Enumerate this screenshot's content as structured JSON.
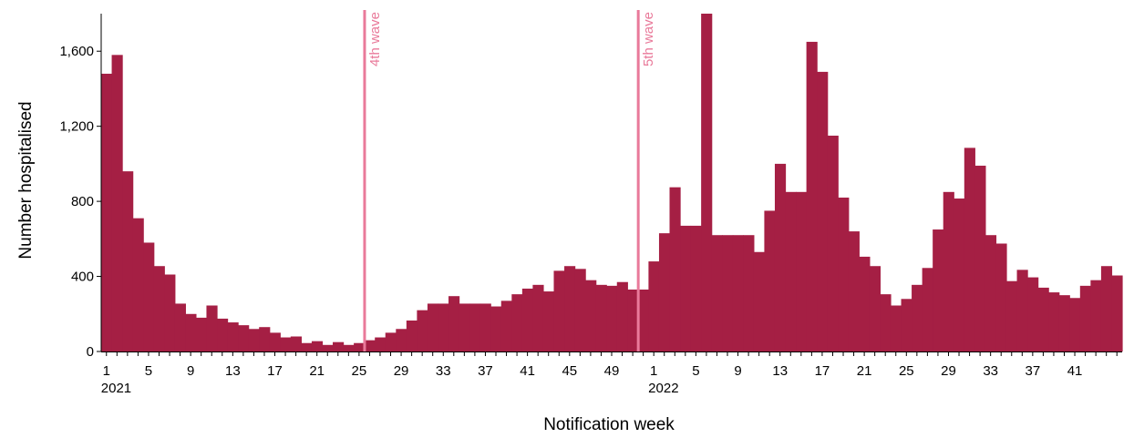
{
  "chart_data": {
    "type": "bar",
    "xlabel": "Notification week",
    "ylabel": "Number hospitalised",
    "ylim": [
      0,
      1800
    ],
    "yticks": [
      0,
      400,
      800,
      1200,
      1600
    ],
    "ytick_labels": [
      "0",
      "400",
      "800",
      "1,200",
      "1,600"
    ],
    "grid": false,
    "bar_color": "#a51f44",
    "line_color": "#e97a9a",
    "years": [
      {
        "label": "2021",
        "week": 1,
        "index": 0
      },
      {
        "label": "2022",
        "week": 1,
        "index": 52
      }
    ],
    "week_ticks": [
      {
        "index": 0,
        "label": "1"
      },
      {
        "index": 4,
        "label": "5"
      },
      {
        "index": 8,
        "label": "9"
      },
      {
        "index": 12,
        "label": "13"
      },
      {
        "index": 16,
        "label": "17"
      },
      {
        "index": 20,
        "label": "21"
      },
      {
        "index": 24,
        "label": "25"
      },
      {
        "index": 28,
        "label": "29"
      },
      {
        "index": 32,
        "label": "33"
      },
      {
        "index": 36,
        "label": "37"
      },
      {
        "index": 40,
        "label": "41"
      },
      {
        "index": 44,
        "label": "45"
      },
      {
        "index": 48,
        "label": "49"
      },
      {
        "index": 52,
        "label": "1"
      },
      {
        "index": 56,
        "label": "5"
      },
      {
        "index": 60,
        "label": "9"
      },
      {
        "index": 64,
        "label": "13"
      },
      {
        "index": 68,
        "label": "17"
      },
      {
        "index": 72,
        "label": "21"
      },
      {
        "index": 76,
        "label": "25"
      },
      {
        "index": 80,
        "label": "29"
      },
      {
        "index": 84,
        "label": "33"
      },
      {
        "index": 88,
        "label": "37"
      },
      {
        "index": 92,
        "label": "41"
      }
    ],
    "annotations": [
      {
        "label": "4th wave",
        "year": "2021",
        "week": 26
      },
      {
        "label": "5th wave",
        "year": "2021",
        "week": 52
      }
    ],
    "values": [
      1480,
      1580,
      960,
      710,
      580,
      455,
      410,
      255,
      200,
      180,
      245,
      175,
      155,
      140,
      120,
      130,
      100,
      75,
      80,
      45,
      55,
      35,
      50,
      35,
      45,
      60,
      75,
      100,
      120,
      165,
      220,
      255,
      255,
      295,
      255,
      255,
      255,
      240,
      270,
      305,
      335,
      355,
      320,
      430,
      455,
      440,
      380,
      355,
      350,
      370,
      330,
      330,
      480,
      630,
      875,
      670,
      670,
      1800,
      620,
      620,
      620,
      620,
      530,
      750,
      1000,
      850,
      850,
      1650,
      1490,
      1150,
      820,
      640,
      505,
      455,
      305,
      245,
      280,
      355,
      445,
      650,
      850,
      815,
      1085,
      990,
      620,
      575,
      375,
      435,
      395,
      340,
      315,
      300,
      285,
      350,
      380,
      455,
      405
    ]
  }
}
